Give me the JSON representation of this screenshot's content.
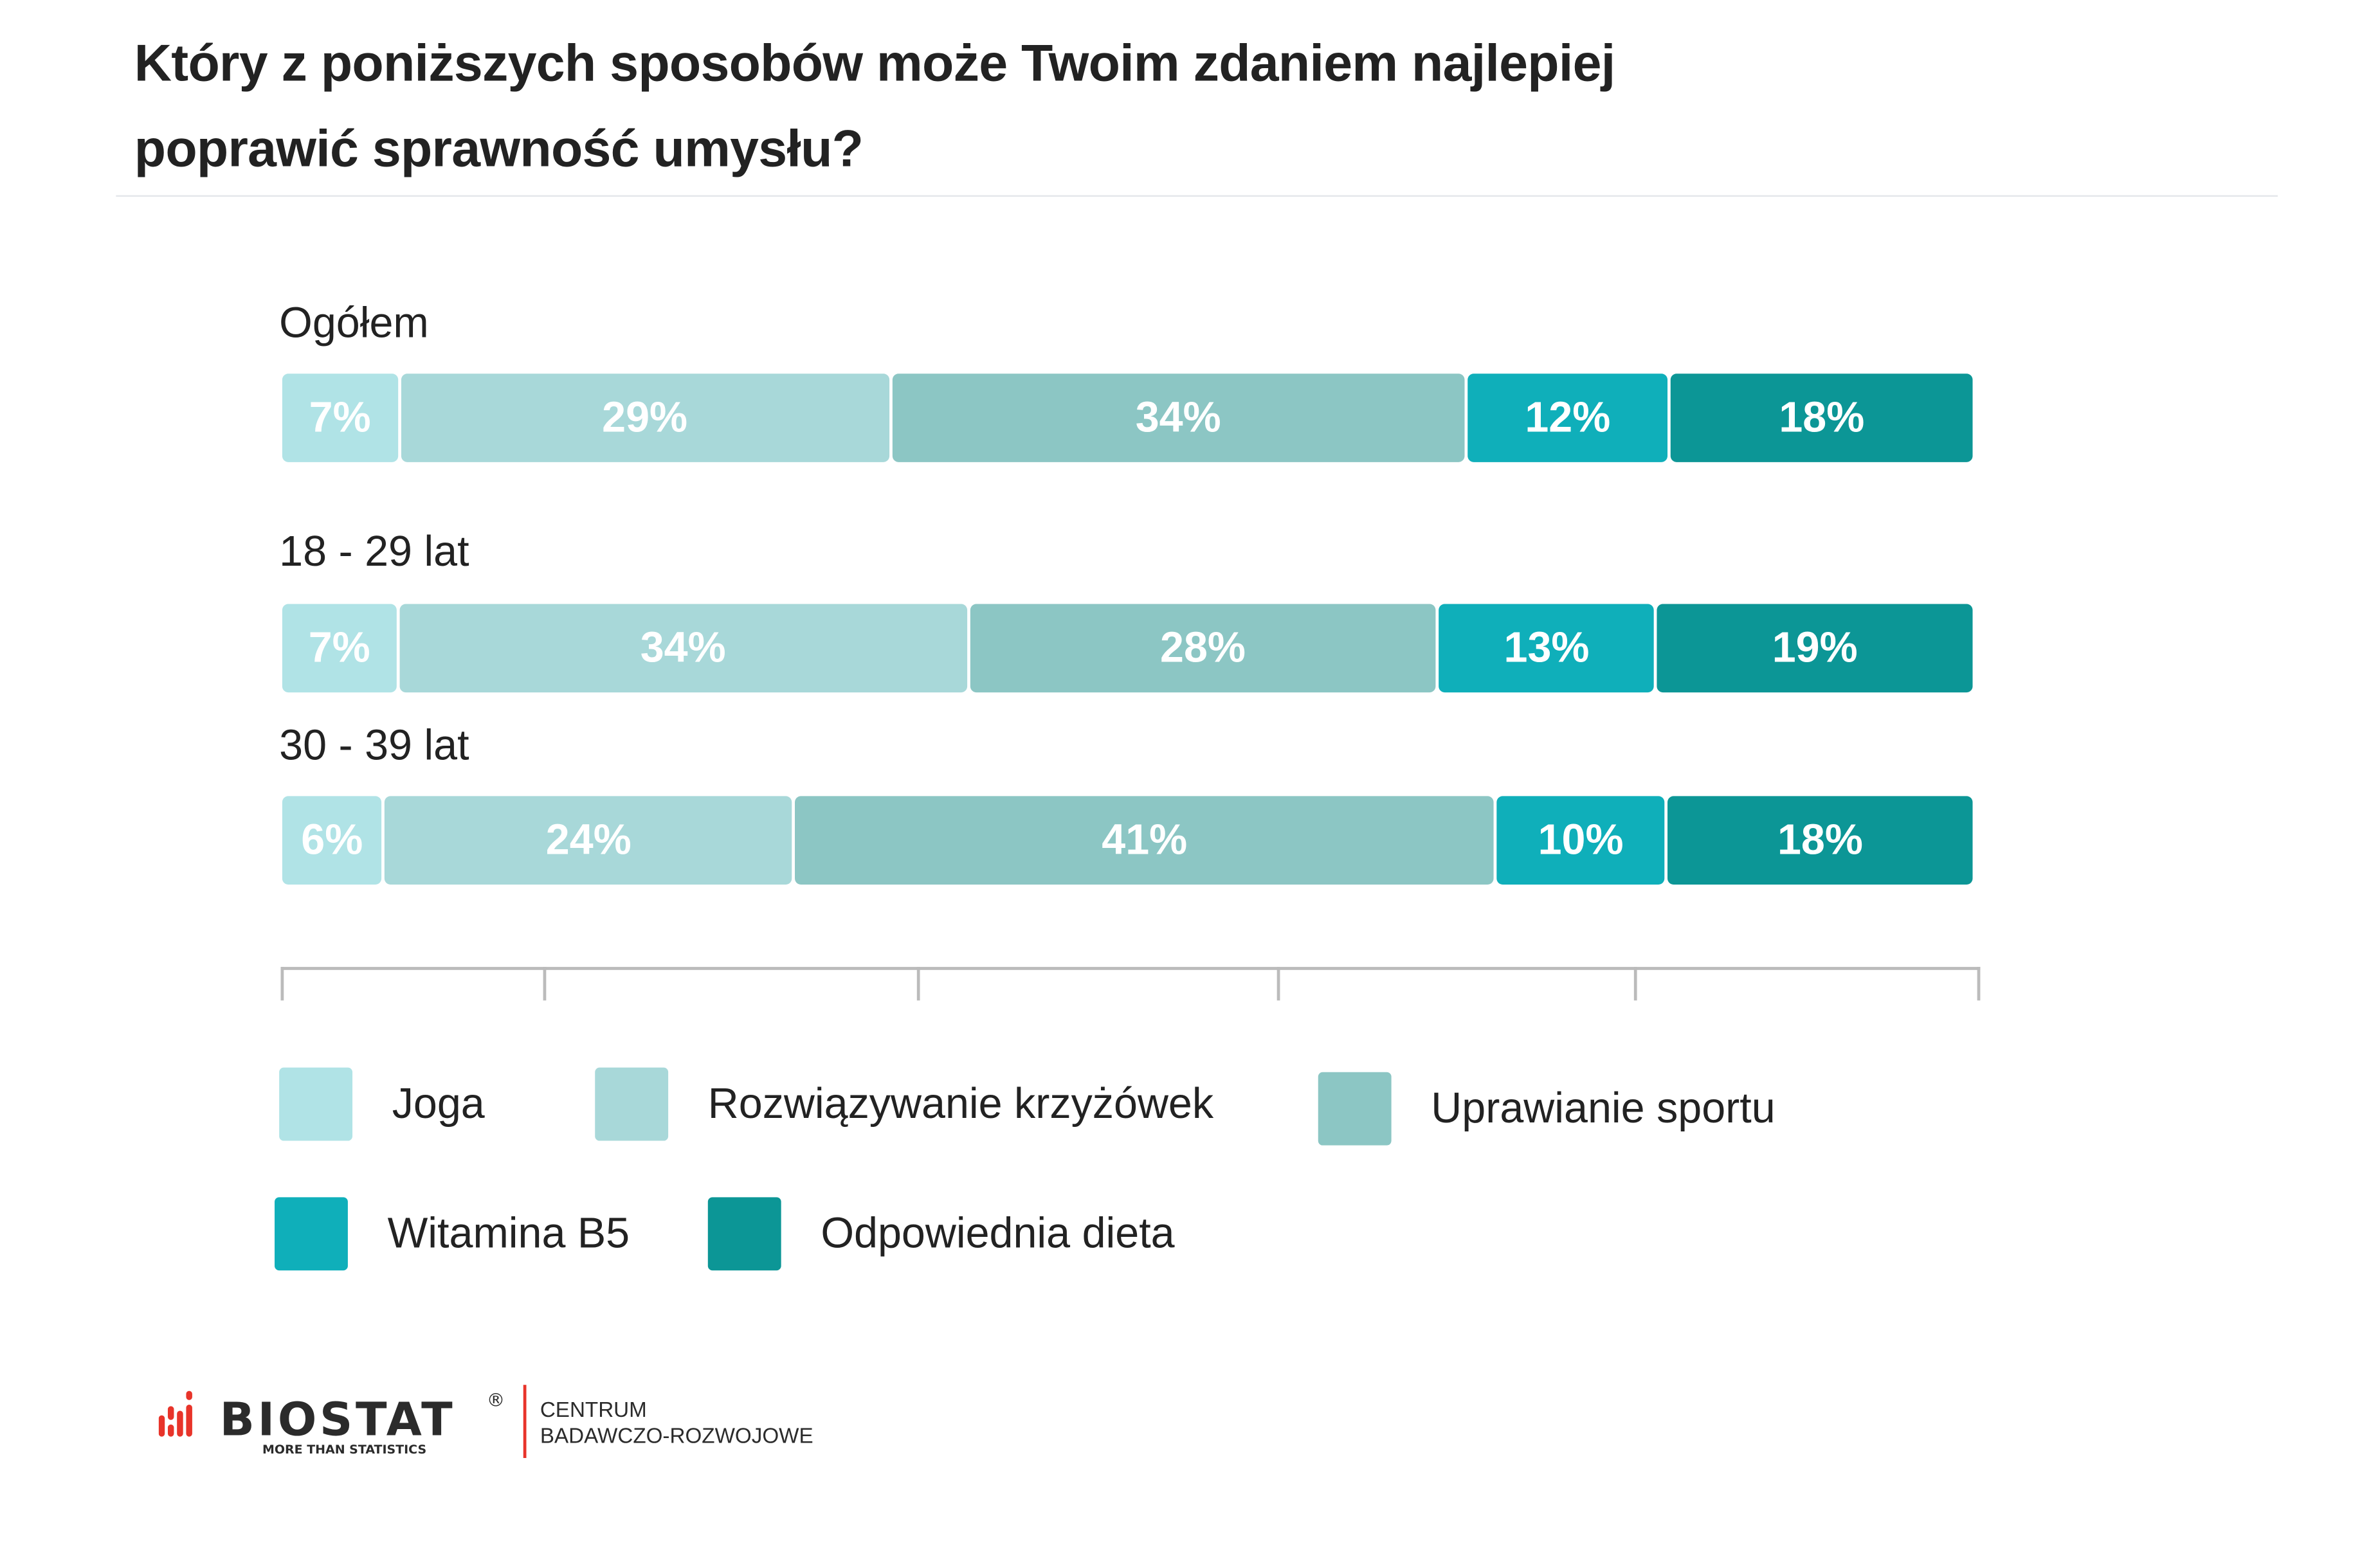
{
  "title_lines": [
    "Który z poniższych sposobów może Twoim zdaniem najlepiej",
    "poprawić sprawność umysłu?"
  ],
  "chart_data": {
    "type": "bar",
    "orientation": "horizontal-stacked-100",
    "title": "Który z poniższych sposobów może Twoim zdaniem najlepiej poprawić sprawność umysłu?",
    "categories": [
      "Ogółem",
      "18 - 29 lat",
      "30 - 39 lat"
    ],
    "series": [
      {
        "name": "Joga",
        "color": "#b0e3e6",
        "values": [
          7,
          7,
          6
        ]
      },
      {
        "name": "Rozwiązywanie krzyżówek",
        "color": "#a8d8d9",
        "values": [
          29,
          34,
          24
        ]
      },
      {
        "name": "Uprawianie sportu",
        "color": "#8cc6c4",
        "values": [
          34,
          28,
          41
        ]
      },
      {
        "name": "Witamina B5",
        "color": "#0fafba",
        "values": [
          12,
          13,
          10
        ]
      },
      {
        "name": "Odpowiednia dieta",
        "color": "#0c9696",
        "values": [
          18,
          19,
          18
        ]
      }
    ],
    "value_suffix": "%",
    "legend_position": "bottom",
    "xlabel": "",
    "ylabel": ""
  },
  "logo": {
    "brand": "BIOSTAT",
    "tagline": "MORE THAN STATISTICS",
    "registered": "®",
    "division_lines": [
      "CENTRUM",
      "BADAWCZO-ROZWOJOWE"
    ],
    "accent": "#e8342a"
  }
}
